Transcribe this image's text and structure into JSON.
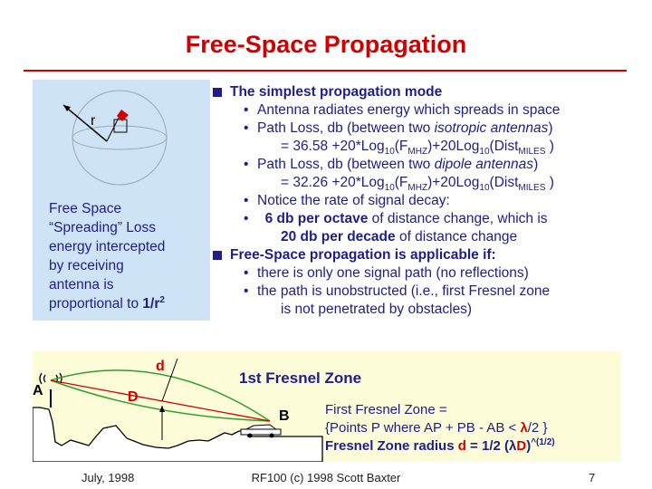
{
  "slide": {
    "title": "Free-Space Propagation",
    "date": "July, 1998",
    "footer": "RF100 (c) 1998 Scott Baxter",
    "page_number": "7"
  },
  "sphere_figure": {
    "radius_label": "r",
    "caption_line1": "Free Space",
    "caption_line2": "“Spreading” Loss",
    "caption_line3": "energy intercepted",
    "caption_line4": "by receiving",
    "caption_line5": "antenna is",
    "caption_line6a": "proportional to ",
    "caption_line6b": "1/r",
    "caption_line6c": "2"
  },
  "content": {
    "b1_text": "The simplest propagation mode",
    "b1_s1": "Antenna radiates energy which spreads in space",
    "b1_s2_a": "Path Loss, db (between two ",
    "b1_s2_b": "isotropic antennas",
    "b1_s2_c": ")",
    "b1_s2_f_pre": "= 36.58 +20*Log",
    "b1_s2_f_sub1": "10",
    "b1_s2_f_mid1": "(F",
    "b1_s2_f_sub2": "MHZ",
    "b1_s2_f_mid2": ")+20Log",
    "b1_s2_f_sub3": "10",
    "b1_s2_f_mid3": "(Dist",
    "b1_s2_f_sub4": "MILES",
    "b1_s2_f_end": " )",
    "b1_s3_a": "Path Loss, db (between two ",
    "b1_s3_b": "dipole antennas",
    "b1_s3_c": ")",
    "b1_s3_f_pre": "= 32.26 +20*Log",
    "b1_s3_f_sub1": "10",
    "b1_s3_f_mid1": "(F",
    "b1_s3_f_sub2": "MHZ",
    "b1_s3_f_mid2": ")+20Log",
    "b1_s3_f_sub3": "10",
    "b1_s3_f_mid3": "(Dist",
    "b1_s3_f_sub4": "MILES",
    "b1_s3_f_end": " )",
    "b1_s4": "Notice the rate of signal decay:",
    "b1_s5_a": "6 db per octave",
    "b1_s5_b": " of distance change, which is",
    "b1_s5_c": "20 db per decade",
    "b1_s5_d": " of distance change",
    "b2_text": "Free-Space propagation is applicable if:",
    "b2_s1": "there is only one signal path (no reflections)",
    "b2_s2_a": "the path is unobstructed (i.e., first Fresnel zone",
    "b2_s2_b": "is not penetrated by obstacles)"
  },
  "fresnel": {
    "heading": "1st Fresnel Zone",
    "label_a": "A",
    "label_b": "B",
    "label_d_upper": "d",
    "label_d_point": "D",
    "def_line1": "First Fresnel Zone =",
    "def_line2a": "{Points P where AP + PB - AB < ",
    "def_line2_lambda": "λ",
    "def_line2b": "/2 }",
    "def_line3a": "Fresnel Zone radius  ",
    "def_line3_d": "d",
    "def_line3b": " = 1/2 (",
    "def_line3_lambda": "λ",
    "def_line3_D": "D",
    "def_line3c": ")",
    "def_line3_exp": "^(1/2)"
  },
  "colors": {
    "title": "#d00000",
    "body_text": "#1e1e8a",
    "sphere_panel": "#cfe3f7",
    "fresnel_panel": "#fdfcd8",
    "fresnel_zone": "#2e9e2e",
    "signal_path": "#d00000"
  }
}
